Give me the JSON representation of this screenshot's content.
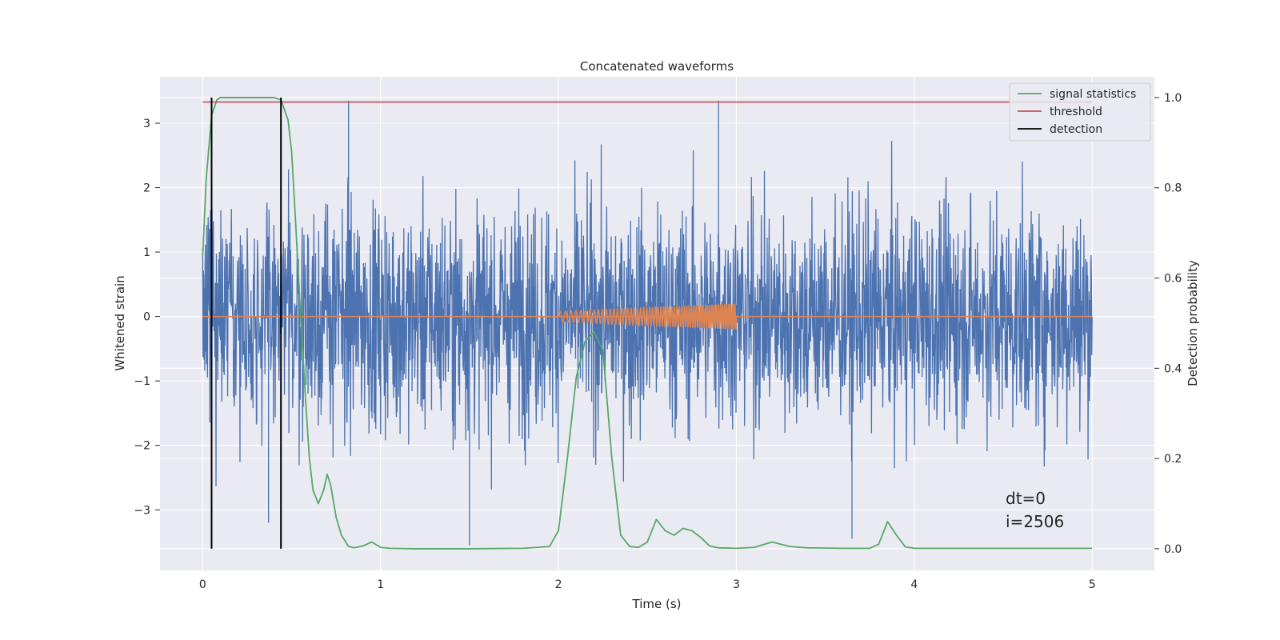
{
  "chart_data": {
    "type": "line",
    "title": "Concatenated waveforms",
    "xlabel": "Time (s)",
    "ylabel": "Whitened strain",
    "ylabel_right": "Detection probability",
    "xlim": [
      -0.24,
      5.35
    ],
    "ylim": [
      -3.94,
      3.72
    ],
    "ylim_right": [
      -0.048,
      1.046
    ],
    "x_ticks": [
      0,
      1,
      2,
      3,
      4,
      5
    ],
    "x_tick_labels": [
      "0",
      "1",
      "2",
      "3",
      "4",
      "5"
    ],
    "y_ticks": [
      -3,
      -2,
      -1,
      0,
      1,
      2,
      3
    ],
    "y_tick_labels": [
      "−3",
      "−2",
      "−1",
      "0",
      "1",
      "2",
      "3"
    ],
    "y_right_ticks": [
      0.0,
      0.2,
      0.4,
      0.6,
      0.8,
      1.0
    ],
    "y_right_tick_labels": [
      "0.0",
      "0.2",
      "0.4",
      "0.6",
      "0.8",
      "1.0"
    ],
    "grid": true,
    "legend_position": "top-right",
    "colors": {
      "background": "#eaeaf2",
      "grid": "#ffffff",
      "strain": "#4c72b0",
      "injection": "#dd8452",
      "signal_statistics": "#55a868",
      "threshold": "#c44e52",
      "detection": "#000000"
    },
    "noise_series": {
      "axis": "left",
      "x_range": [
        0,
        5
      ],
      "sigma": 0.85,
      "spikes": [
        [
          0.82,
          3.35
        ],
        [
          2.9,
          3.35
        ],
        [
          1.5,
          -3.55
        ],
        [
          3.65,
          -3.45
        ],
        [
          0.37,
          -3.2
        ]
      ]
    },
    "injection_series": {
      "axis": "left",
      "x_range": [
        2.0,
        3.0
      ],
      "amplitude_start": 0.08,
      "amplitude_end": 0.2,
      "frequency_start": 30,
      "frequency_end": 60
    },
    "series": [
      {
        "name": "signal statistics",
        "axis": "right",
        "x": [
          0,
          0.02,
          0.05,
          0.08,
          0.1,
          0.15,
          0.2,
          0.3,
          0.4,
          0.44,
          0.48,
          0.5,
          0.52,
          0.55,
          0.58,
          0.6,
          0.62,
          0.65,
          0.68,
          0.7,
          0.72,
          0.75,
          0.78,
          0.82,
          0.85,
          0.9,
          0.95,
          1.0,
          1.05,
          1.2,
          1.5,
          1.8,
          1.95,
          2.0,
          2.05,
          2.1,
          2.15,
          2.2,
          2.25,
          2.3,
          2.35,
          2.4,
          2.45,
          2.5,
          2.55,
          2.6,
          2.65,
          2.7,
          2.75,
          2.8,
          2.85,
          2.9,
          3.0,
          3.1,
          3.2,
          3.3,
          3.4,
          3.6,
          3.75,
          3.8,
          3.85,
          3.9,
          3.95,
          4.0,
          4.5,
          5.0
        ],
        "y": [
          0.65,
          0.82,
          0.96,
          0.995,
          1.0,
          1.0,
          1.0,
          1.0,
          1.0,
          0.995,
          0.95,
          0.88,
          0.74,
          0.52,
          0.32,
          0.2,
          0.13,
          0.1,
          0.13,
          0.165,
          0.14,
          0.07,
          0.03,
          0.005,
          0.002,
          0.006,
          0.015,
          0.003,
          0.001,
          0.0,
          0.0,
          0.001,
          0.005,
          0.04,
          0.2,
          0.38,
          0.46,
          0.48,
          0.44,
          0.2,
          0.03,
          0.005,
          0.003,
          0.015,
          0.065,
          0.04,
          0.03,
          0.045,
          0.04,
          0.025,
          0.006,
          0.002,
          0.001,
          0.003,
          0.015,
          0.005,
          0.002,
          0.001,
          0.001,
          0.01,
          0.06,
          0.03,
          0.004,
          0.001,
          0.001,
          0.001
        ]
      },
      {
        "name": "threshold",
        "axis": "right",
        "x": [
          0,
          5
        ],
        "y": [
          0.99,
          0.99
        ]
      },
      {
        "name": "detection",
        "axis": "right",
        "vertical_lines_x": [
          0.05,
          0.44
        ]
      }
    ],
    "annotations": [
      "dt=0",
      "i=2506"
    ]
  }
}
